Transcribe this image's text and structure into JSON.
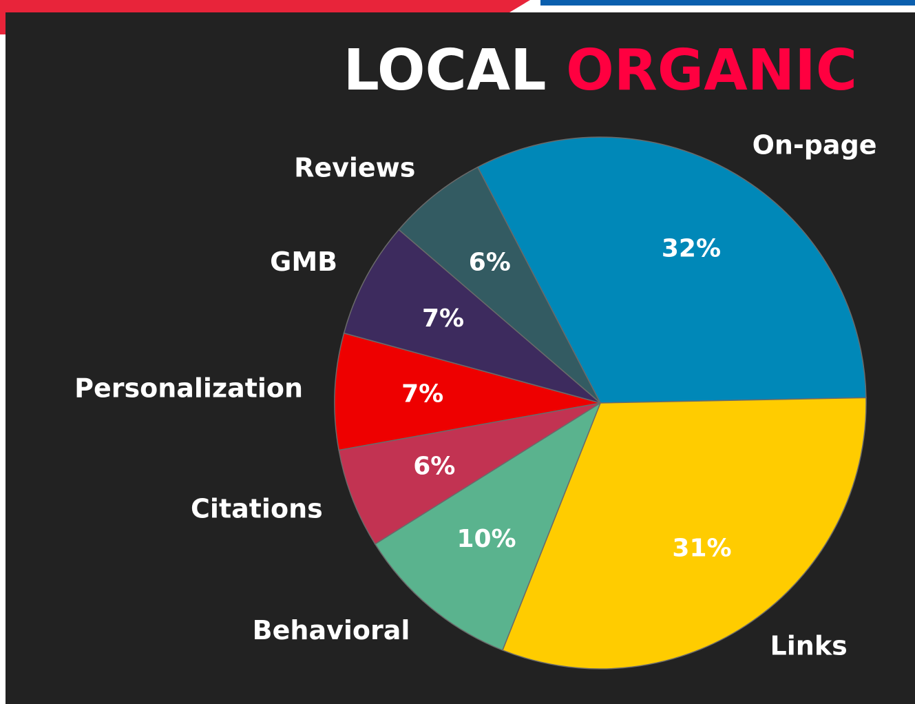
{
  "chart_data": {
    "type": "pie",
    "title": [
      "LOCAL",
      "ORGANIC"
    ],
    "title_colors": [
      "#ffffff",
      "#ff0040"
    ],
    "categories": [
      "On-page",
      "Links",
      "Behavioral",
      "Citations",
      "Personalization",
      "GMB",
      "Reviews"
    ],
    "values": [
      32,
      31,
      10,
      6,
      7,
      7,
      6
    ],
    "value_labels": [
      "32%",
      "31%",
      "10%",
      "6%",
      "7%",
      "7%",
      "6%"
    ],
    "colors": [
      "#0088b8",
      "#ffcc00",
      "#5ab38e",
      "#c23352",
      "#ee0000",
      "#3d2b5e",
      "#335b62"
    ]
  }
}
